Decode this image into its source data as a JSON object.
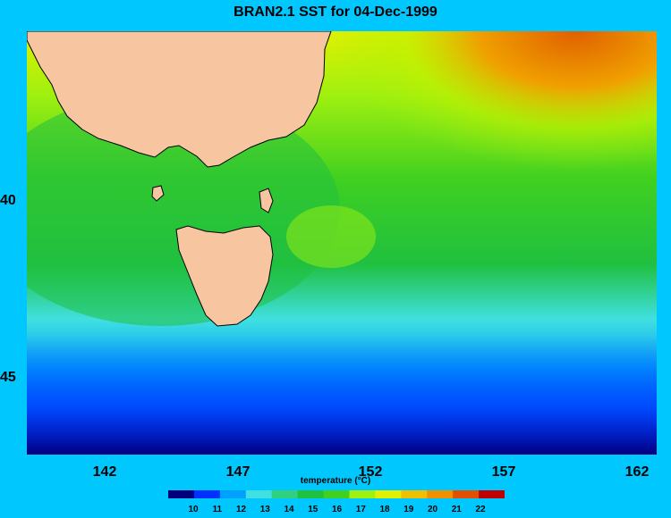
{
  "title": "BRAN2.1 SST for 04-Dec-1999",
  "x_ticks": [
    "142",
    "147",
    "152",
    "157",
    "162"
  ],
  "y_ticks": [
    "40",
    "45"
  ],
  "colorbar": {
    "title": "temperature (°C)",
    "ticks": [
      "10",
      "11",
      "12",
      "13",
      "14",
      "15",
      "16",
      "17",
      "18",
      "19",
      "20",
      "21",
      "22"
    ],
    "colors": [
      "#00007f",
      "#0032ff",
      "#00a0ff",
      "#40e0e0",
      "#30d080",
      "#20c040",
      "#40d020",
      "#a0f010",
      "#e0f000",
      "#f0c000",
      "#f09000",
      "#e05000",
      "#c00000"
    ]
  },
  "colors": {
    "background": "#00c8ff",
    "land": "#f7c59f",
    "coast": "#000000"
  }
}
